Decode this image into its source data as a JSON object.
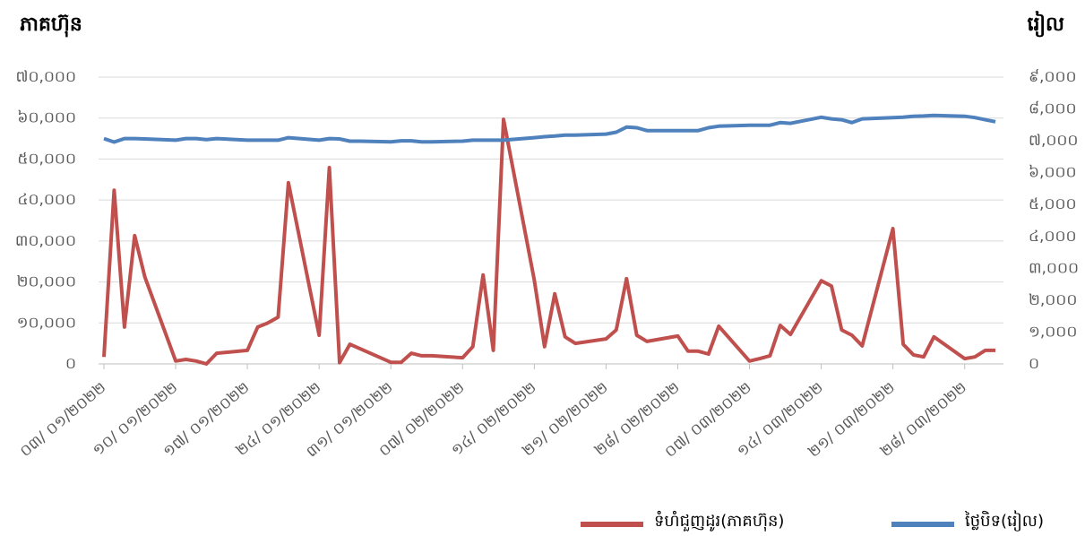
{
  "chart_data": {
    "type": "line",
    "y_axis_title": "ភាគហ៊ុន",
    "y2_axis_title": "រៀល",
    "x": [
      "2022-01-03",
      "2022-01-04",
      "2022-01-05",
      "2022-01-06",
      "2022-01-07",
      "2022-01-10",
      "2022-01-11",
      "2022-01-12",
      "2022-01-13",
      "2022-01-14",
      "2022-01-17",
      "2022-01-18",
      "2022-01-19",
      "2022-01-20",
      "2022-01-21",
      "2022-01-24",
      "2022-01-25",
      "2022-01-26",
      "2022-01-27",
      "2022-01-28",
      "2022-01-31",
      "2022-02-01",
      "2022-02-02",
      "2022-02-03",
      "2022-02-04",
      "2022-02-07",
      "2022-02-08",
      "2022-02-09",
      "2022-02-10",
      "2022-02-11",
      "2022-02-14",
      "2022-02-15",
      "2022-02-16",
      "2022-02-17",
      "2022-02-18",
      "2022-02-21",
      "2022-02-22",
      "2022-02-23",
      "2022-02-24",
      "2022-02-25",
      "2022-02-28",
      "2022-03-01",
      "2022-03-02",
      "2022-03-03",
      "2022-03-04",
      "2022-03-07",
      "2022-03-08",
      "2022-03-09",
      "2022-03-10",
      "2022-03-11",
      "2022-03-14",
      "2022-03-15",
      "2022-03-16",
      "2022-03-17",
      "2022-03-18",
      "2022-03-21",
      "2022-03-22",
      "2022-03-23",
      "2022-03-24",
      "2022-03-25",
      "2022-03-28",
      "2022-03-29",
      "2022-03-30",
      "2022-03-31"
    ],
    "series": [
      {
        "name": "ទំហំជួញដូរ(ភាគហ៊ុន)",
        "color": "#c0504d",
        "axis": "y",
        "values": [
          1700,
          42400,
          9000,
          31300,
          21200,
          700,
          1100,
          700,
          0,
          2600,
          3300,
          9000,
          10000,
          11400,
          44200,
          7000,
          47900,
          300,
          4800,
          3700,
          400,
          400,
          2600,
          2000,
          2000,
          1500,
          4200,
          21700,
          3300,
          59700,
          20500,
          4200,
          17100,
          6600,
          5000,
          6100,
          8300,
          20800,
          7000,
          5500,
          6800,
          3100,
          3100,
          2400,
          9200,
          700,
          1300,
          2000,
          9400,
          7200,
          20300,
          19000,
          8300,
          7000,
          4400,
          33000,
          4800,
          2200,
          1700,
          6600,
          1300,
          1700,
          3300,
          3300
        ]
      },
      {
        "name": "ថ្លៃបិទ(រៀល)",
        "color": "#4f81bd",
        "axis": "y2",
        "values": [
          7070,
          6960,
          7070,
          7070,
          7060,
          7020,
          7070,
          7070,
          7040,
          7070,
          7020,
          7020,
          7020,
          7020,
          7100,
          7020,
          7070,
          7060,
          6990,
          6990,
          6970,
          7000,
          7000,
          6970,
          6970,
          6990,
          7020,
          7020,
          7020,
          7020,
          7100,
          7130,
          7150,
          7180,
          7180,
          7210,
          7270,
          7430,
          7410,
          7320,
          7320,
          7320,
          7320,
          7410,
          7460,
          7490,
          7490,
          7490,
          7570,
          7550,
          7740,
          7690,
          7660,
          7570,
          7690,
          7730,
          7740,
          7770,
          7780,
          7800,
          7770,
          7730,
          7660,
          7600
        ]
      }
    ],
    "xticks": [
      {
        "value": "2022-01-03",
        "label": "០៣/ ០១/២០២២"
      },
      {
        "value": "2022-01-10",
        "label": "១០/ ០១/២០២២"
      },
      {
        "value": "2022-01-17",
        "label": "១៧/ ០១/២០២២"
      },
      {
        "value": "2022-01-24",
        "label": "២៤/ ០១/២០២២"
      },
      {
        "value": "2022-01-31",
        "label": "៣១/ ០១/២០២២"
      },
      {
        "value": "2022-02-07",
        "label": "០៧/ ០២/២០២២"
      },
      {
        "value": "2022-02-14",
        "label": "១៤/ ០២/២០២២"
      },
      {
        "value": "2022-02-21",
        "label": "២១/ ០២/២០២២"
      },
      {
        "value": "2022-02-28",
        "label": "២៨/ ០២/២០២២"
      },
      {
        "value": "2022-03-07",
        "label": "០៧/ ០៣/២០២២"
      },
      {
        "value": "2022-03-14",
        "label": "១៤/ ០៣/២០២២"
      },
      {
        "value": "2022-03-21",
        "label": "២១/ ០៣/២០២២"
      },
      {
        "value": "2022-03-28",
        "label": "២៨/ ០៣/២០២២"
      }
    ],
    "ylim": [
      0,
      70000
    ],
    "yticks": [
      {
        "value": 0,
        "label": "០"
      },
      {
        "value": 10000,
        "label": "១០,០០០"
      },
      {
        "value": 20000,
        "label": "២០,០០០"
      },
      {
        "value": 30000,
        "label": "៣០,០០០"
      },
      {
        "value": 40000,
        "label": "៤០,០០០"
      },
      {
        "value": 50000,
        "label": "៥០,០០០"
      },
      {
        "value": 60000,
        "label": "៦០,០០០"
      },
      {
        "value": 70000,
        "label": "៧០,០០០"
      }
    ],
    "y2lim": [
      0,
      9000
    ],
    "y2ticks": [
      {
        "value": 0,
        "label": "០"
      },
      {
        "value": 1000,
        "label": "១,០០០"
      },
      {
        "value": 2000,
        "label": "២,០០០"
      },
      {
        "value": 3000,
        "label": "៣,០០០"
      },
      {
        "value": 4000,
        "label": "៤,០០០"
      },
      {
        "value": 5000,
        "label": "៥,០០០"
      },
      {
        "value": 6000,
        "label": "៦,០០០"
      },
      {
        "value": 7000,
        "label": "៧,០០០"
      },
      {
        "value": 8000,
        "label": "៨,០០០"
      },
      {
        "value": 9000,
        "label": "៩,០០០"
      }
    ],
    "grid": true,
    "legend": "bottom-right"
  }
}
